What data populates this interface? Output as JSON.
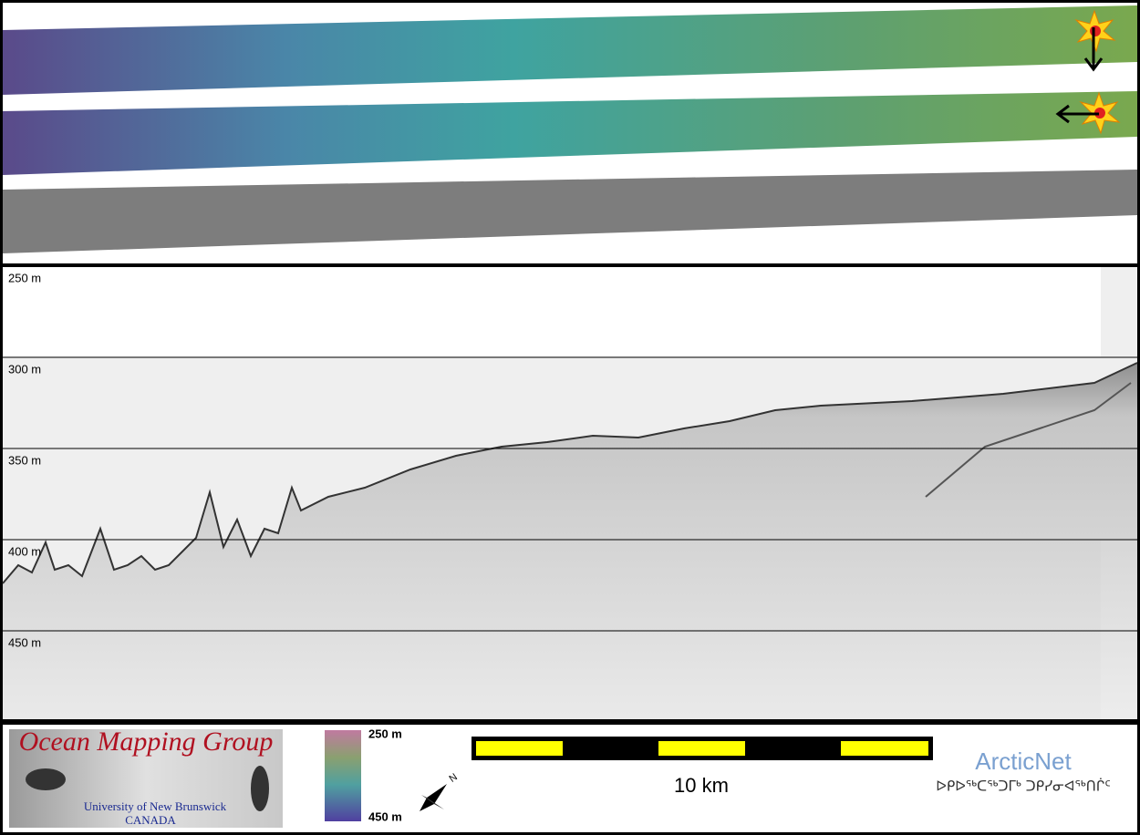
{
  "depth_axis": {
    "ticks": [
      {
        "value": 250,
        "label": "250 m"
      },
      {
        "value": 300,
        "label": "300 m"
      },
      {
        "value": 350,
        "label": "350 m"
      },
      {
        "value": 400,
        "label": "400 m"
      },
      {
        "value": 450,
        "label": "450 m"
      }
    ]
  },
  "logo": {
    "title": "Ocean Mapping Group",
    "line1": "University of New Brunswick",
    "line2": "CANADA"
  },
  "colorbar": {
    "top_label": "250 m",
    "bottom_label": "450 m"
  },
  "compass": {
    "label": "N"
  },
  "scale_bar": {
    "label": "10 km"
  },
  "arcticnet": {
    "name": "ArcticNet",
    "tagline": "ᐅᑭᐅᖅᑕᖅᑐᒥᒃ ᑐᑭᓯᓂᐊᖅᑎᒌᑦ"
  }
}
